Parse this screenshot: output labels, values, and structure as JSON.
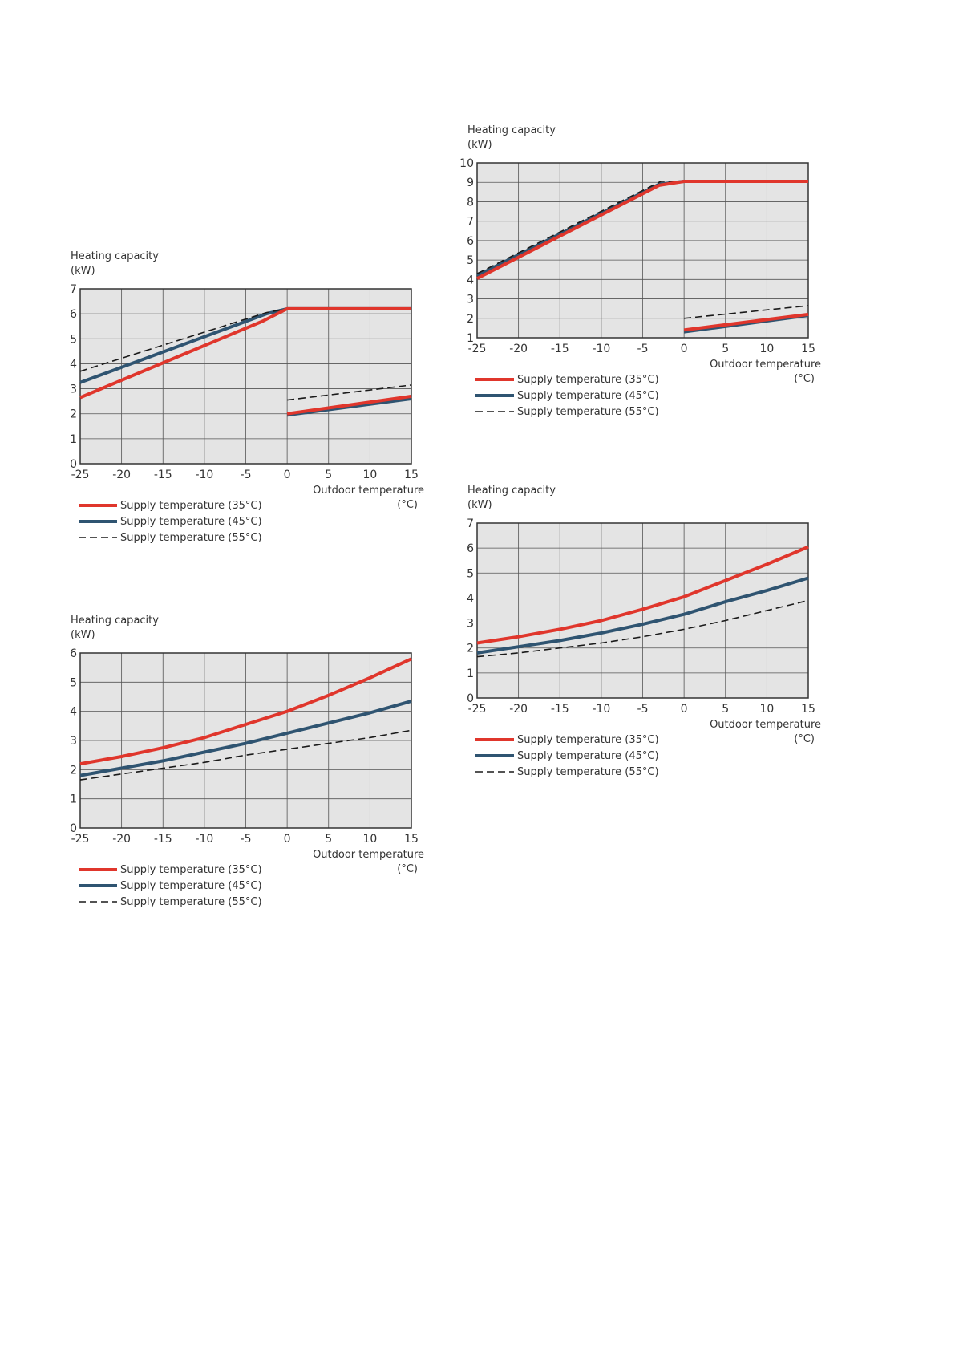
{
  "chart_data": [
    {
      "type": "line",
      "ylabel": [
        "Heating capacity",
        "(kW)"
      ],
      "xlabel": [
        "Outdoor temperature",
        "(°C)"
      ],
      "xlim": [
        -25,
        15
      ],
      "ylim": [
        0,
        7
      ],
      "xticks": [
        -25,
        -20,
        -15,
        -10,
        -5,
        0,
        5,
        10,
        15
      ],
      "yticks": [
        0,
        1,
        2,
        3,
        4,
        5,
        6,
        7
      ],
      "grid": true,
      "legend": [
        {
          "name": "Supply temperature (35°C)",
          "color": "#e0362c",
          "style": "solid"
        },
        {
          "name": "Supply temperature (45°C)",
          "color": "#2f5471",
          "style": "solid"
        },
        {
          "name": "Supply temperature (55°C)",
          "color": "#1a1a1a",
          "style": "dashed"
        }
      ],
      "series": [
        {
          "style_ref": 1,
          "segments": [
            [
              [
                -25,
                3.25
              ],
              [
                -2.5,
                6.0
              ],
              [
                0,
                6.2
              ],
              [
                15,
                6.2
              ]
            ],
            [
              [
                0,
                1.95
              ],
              [
                15,
                2.6
              ]
            ]
          ]
        },
        {
          "style_ref": 2,
          "segments": [
            [
              [
                -25,
                3.7
              ],
              [
                -2.5,
                6.05
              ],
              [
                0,
                6.2
              ]
            ],
            [
              [
                0,
                2.55
              ],
              [
                15,
                3.15
              ]
            ]
          ]
        },
        {
          "style_ref": 0,
          "segments": [
            [
              [
                -25,
                2.65
              ],
              [
                -3,
                5.7
              ],
              [
                0,
                6.2
              ],
              [
                15,
                6.2
              ]
            ],
            [
              [
                0,
                2.0
              ],
              [
                15,
                2.7
              ]
            ]
          ]
        }
      ]
    },
    {
      "type": "line",
      "ylabel": [
        "Heating capacity",
        "(kW)"
      ],
      "xlabel": [
        "Outdoor temperature",
        "(°C)"
      ],
      "xlim": [
        -25,
        15
      ],
      "ylim": [
        1,
        10
      ],
      "xticks": [
        -25,
        -20,
        -15,
        -10,
        -5,
        0,
        5,
        10,
        15
      ],
      "yticks": [
        1,
        2,
        3,
        4,
        5,
        6,
        7,
        8,
        9,
        10
      ],
      "grid": true,
      "legend": [
        {
          "name": "Supply temperature (35°C)",
          "color": "#e0362c",
          "style": "solid"
        },
        {
          "name": "Supply temperature (45°C)",
          "color": "#2f5471",
          "style": "solid"
        },
        {
          "name": "Supply temperature (55°C)",
          "color": "#1a1a1a",
          "style": "dashed"
        }
      ],
      "series": [
        {
          "style_ref": 1,
          "segments": [
            [
              [
                -25,
                4.2
              ],
              [
                -3,
                8.9
              ],
              [
                0,
                9.05
              ],
              [
                15,
                9.05
              ]
            ],
            [
              [
                0,
                1.3
              ],
              [
                15,
                2.15
              ]
            ]
          ]
        },
        {
          "style_ref": 2,
          "segments": [
            [
              [
                -25,
                4.3
              ],
              [
                -2.8,
                9.05
              ],
              [
                0,
                9.05
              ]
            ],
            [
              [
                0,
                2.0
              ],
              [
                15,
                2.65
              ]
            ]
          ]
        },
        {
          "style_ref": 0,
          "segments": [
            [
              [
                -25,
                4.05
              ],
              [
                -3,
                8.85
              ],
              [
                0,
                9.05
              ],
              [
                15,
                9.05
              ]
            ],
            [
              [
                0,
                1.4
              ],
              [
                15,
                2.2
              ]
            ]
          ]
        }
      ]
    },
    {
      "type": "line",
      "ylabel": [
        "Heating capacity",
        "(kW)"
      ],
      "xlabel": [
        "Outdoor temperature",
        "(°C)"
      ],
      "xlim": [
        -25,
        15
      ],
      "ylim": [
        0,
        6
      ],
      "xticks": [
        -25,
        -20,
        -15,
        -10,
        -5,
        0,
        5,
        10,
        15
      ],
      "yticks": [
        0,
        1,
        2,
        3,
        4,
        5,
        6
      ],
      "grid": true,
      "legend": [
        {
          "name": "Supply temperature (35°C)",
          "color": "#e0362c",
          "style": "solid"
        },
        {
          "name": "Supply temperature (45°C)",
          "color": "#2f5471",
          "style": "solid"
        },
        {
          "name": "Supply temperature (55°C)",
          "color": "#1a1a1a",
          "style": "dashed"
        }
      ],
      "series": [
        {
          "style_ref": 0,
          "segments": [
            [
              [
                -25,
                2.2
              ],
              [
                -20,
                2.45
              ],
              [
                -15,
                2.75
              ],
              [
                -10,
                3.1
              ],
              [
                -5,
                3.55
              ],
              [
                0,
                4.0
              ],
              [
                5,
                4.55
              ],
              [
                10,
                5.15
              ],
              [
                15,
                5.8
              ]
            ]
          ]
        },
        {
          "style_ref": 1,
          "segments": [
            [
              [
                -25,
                1.8
              ],
              [
                -20,
                2.05
              ],
              [
                -15,
                2.3
              ],
              [
                -10,
                2.6
              ],
              [
                -5,
                2.9
              ],
              [
                0,
                3.25
              ],
              [
                5,
                3.6
              ],
              [
                10,
                3.95
              ],
              [
                15,
                4.35
              ]
            ]
          ]
        },
        {
          "style_ref": 2,
          "segments": [
            [
              [
                -25,
                1.65
              ],
              [
                -20,
                1.85
              ],
              [
                -15,
                2.05
              ],
              [
                -10,
                2.25
              ],
              [
                -5,
                2.5
              ],
              [
                0,
                2.7
              ],
              [
                5,
                2.9
              ],
              [
                10,
                3.1
              ],
              [
                15,
                3.35
              ]
            ]
          ]
        }
      ]
    },
    {
      "type": "line",
      "ylabel": [
        "Heating capacity",
        "(kW)"
      ],
      "xlabel": [
        "Outdoor temperature",
        "(°C)"
      ],
      "xlim": [
        -25,
        15
      ],
      "ylim": [
        0,
        7
      ],
      "xticks": [
        -25,
        -20,
        -15,
        -10,
        -5,
        0,
        5,
        10,
        15
      ],
      "yticks": [
        0,
        1,
        2,
        3,
        4,
        5,
        6,
        7
      ],
      "grid": true,
      "legend": [
        {
          "name": "Supply temperature (35°C)",
          "color": "#e0362c",
          "style": "solid"
        },
        {
          "name": "Supply temperature (45°C)",
          "color": "#2f5471",
          "style": "solid"
        },
        {
          "name": "Supply temperature (55°C)",
          "color": "#1a1a1a",
          "style": "dashed"
        }
      ],
      "series": [
        {
          "style_ref": 0,
          "segments": [
            [
              [
                -25,
                2.2
              ],
              [
                -20,
                2.45
              ],
              [
                -15,
                2.75
              ],
              [
                -10,
                3.1
              ],
              [
                -5,
                3.55
              ],
              [
                0,
                4.05
              ],
              [
                5,
                4.7
              ],
              [
                10,
                5.35
              ],
              [
                15,
                6.05
              ]
            ]
          ]
        },
        {
          "style_ref": 1,
          "segments": [
            [
              [
                -25,
                1.8
              ],
              [
                -20,
                2.05
              ],
              [
                -15,
                2.3
              ],
              [
                -10,
                2.6
              ],
              [
                -5,
                2.95
              ],
              [
                0,
                3.35
              ],
              [
                5,
                3.85
              ],
              [
                10,
                4.3
              ],
              [
                15,
                4.8
              ]
            ]
          ]
        },
        {
          "style_ref": 2,
          "segments": [
            [
              [
                -25,
                1.65
              ],
              [
                -20,
                1.8
              ],
              [
                -15,
                2.0
              ],
              [
                -10,
                2.2
              ],
              [
                -5,
                2.45
              ],
              [
                0,
                2.75
              ],
              [
                5,
                3.1
              ],
              [
                10,
                3.5
              ],
              [
                15,
                3.9
              ]
            ]
          ]
        }
      ]
    }
  ]
}
